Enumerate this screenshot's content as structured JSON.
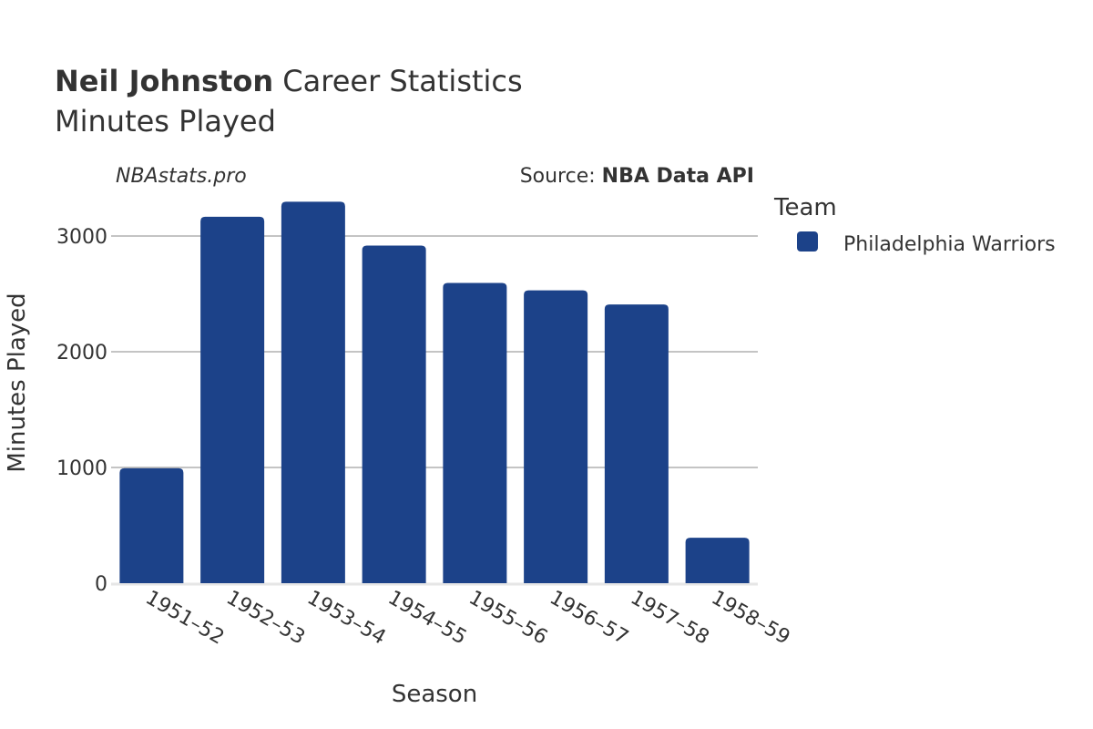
{
  "title_bold": "Neil Johnston",
  "title_rest": " Career Statistics",
  "subtitle": "Minutes Played",
  "watermark": "NBAstats.pro",
  "source_prefix": "Source: ",
  "source_bold": "NBA Data API",
  "legend": {
    "title": "Team",
    "items": [
      {
        "label": "Philadelphia Warriors",
        "color": "#1c4289"
      }
    ]
  },
  "chart_data": {
    "type": "bar",
    "title": "Neil Johnston Career Statistics — Minutes Played",
    "xlabel": "Season",
    "ylabel": "Minutes Played",
    "categories": [
      "1951–52",
      "1952–53",
      "1953–54",
      "1954–55",
      "1955–56",
      "1956–57",
      "1957–58",
      "1958–59"
    ],
    "series": [
      {
        "name": "Philadelphia Warriors",
        "color": "#1c4289",
        "values": [
          993,
          3166,
          3296,
          2917,
          2594,
          2531,
          2408,
          393
        ]
      }
    ],
    "yticks": [
      0,
      1000,
      2000,
      3000
    ],
    "ylim": [
      0,
      3470
    ],
    "grid": true,
    "legend_position": "right"
  }
}
